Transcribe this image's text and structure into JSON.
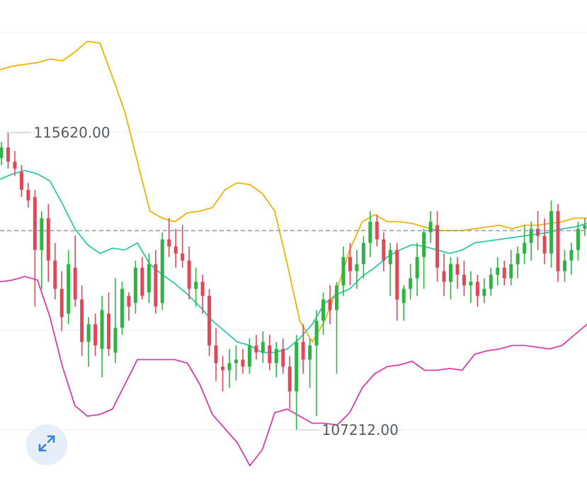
{
  "chart_data": {
    "type": "candlestick",
    "title": "",
    "xlabel": "",
    "ylabel": "",
    "grid": true,
    "annotations": {
      "high_label": "115620.00",
      "low_label": "107212.00"
    },
    "colors": {
      "up": "#2fb344",
      "down": "#e0485a",
      "upper_band": "#f0b400",
      "middle_band": "#2ec7a8",
      "lower_band": "#d93ca7",
      "current_price_line": "#8a8f99",
      "grid": "#eef0f3"
    },
    "candles": [
      [
        114900,
        115350,
        114700,
        115200
      ],
      [
        115200,
        115620,
        114600,
        114800
      ],
      [
        114800,
        115100,
        114400,
        114600
      ],
      [
        114500,
        114700,
        113800,
        114000
      ],
      [
        114000,
        114200,
        113500,
        113700
      ],
      [
        113800,
        114000,
        110700,
        112300
      ],
      [
        112300,
        113400,
        111200,
        113200
      ],
      [
        113200,
        113600,
        111400,
        112000
      ],
      [
        112000,
        112500,
        110900,
        111200
      ],
      [
        111200,
        111700,
        110000,
        110400
      ],
      [
        110500,
        112300,
        110200,
        111900
      ],
      [
        111800,
        112700,
        110700,
        110900
      ],
      [
        110900,
        111300,
        109300,
        109700
      ],
      [
        109700,
        110400,
        109000,
        110200
      ],
      [
        110200,
        110500,
        109300,
        109600
      ],
      [
        109500,
        111000,
        108700,
        110600
      ],
      [
        110500,
        111100,
        109300,
        109500
      ],
      [
        109400,
        111500,
        109100,
        110100
      ],
      [
        110100,
        111400,
        109900,
        111200
      ],
      [
        111000,
        111100,
        110300,
        110700
      ],
      [
        110800,
        112000,
        110500,
        111800
      ],
      [
        111800,
        112100,
        110900,
        111000
      ],
      [
        111100,
        112200,
        110800,
        111900
      ],
      [
        111900,
        112300,
        110500,
        110700
      ],
      [
        110800,
        112800,
        110600,
        112600
      ],
      [
        112600,
        113200,
        112100,
        112400
      ],
      [
        112400,
        112900,
        111800,
        112200
      ],
      [
        112200,
        113000,
        111800,
        112000
      ],
      [
        112000,
        112400,
        110900,
        111200
      ],
      [
        111200,
        111800,
        110700,
        111400
      ],
      [
        111400,
        111600,
        110500,
        111000
      ],
      [
        111000,
        111200,
        109300,
        109600
      ],
      [
        109600,
        110100,
        108600,
        109100
      ],
      [
        109000,
        109300,
        108300,
        108900
      ],
      [
        108900,
        109500,
        108400,
        109100
      ],
      [
        109100,
        109600,
        108600,
        109200
      ],
      [
        109200,
        109500,
        108800,
        109000
      ],
      [
        109000,
        109800,
        108800,
        109600
      ],
      [
        109600,
        109900,
        109200,
        109400
      ],
      [
        109400,
        110000,
        109100,
        109700
      ],
      [
        109600,
        109900,
        108900,
        109100
      ],
      [
        109100,
        109700,
        108700,
        109500
      ],
      [
        109500,
        109800,
        108800,
        109000
      ],
      [
        109000,
        109300,
        107800,
        108300
      ],
      [
        108300,
        109900,
        107212,
        109700
      ],
      [
        109700,
        110200,
        108800,
        109200
      ],
      [
        109200,
        109800,
        108400,
        109600
      ],
      [
        109600,
        110600,
        107600,
        110300
      ],
      [
        110300,
        111100,
        109900,
        110900
      ],
      [
        110900,
        111300,
        110200,
        110600
      ],
      [
        110600,
        111400,
        108800,
        111300
      ],
      [
        111300,
        112400,
        111000,
        112100
      ],
      [
        112100,
        112500,
        111300,
        111700
      ],
      [
        111700,
        112300,
        111200,
        111900
      ],
      [
        111900,
        112700,
        111500,
        112500
      ],
      [
        112500,
        113400,
        112100,
        113100
      ],
      [
        113100,
        113300,
        112400,
        112600
      ],
      [
        112600,
        112800,
        111700,
        112000
      ],
      [
        111900,
        112500,
        111000,
        112300
      ],
      [
        112300,
        112500,
        110300,
        110900
      ],
      [
        110800,
        111300,
        110300,
        111200
      ],
      [
        111200,
        111900,
        110900,
        111500
      ],
      [
        111500,
        112500,
        111000,
        112100
      ],
      [
        112100,
        112900,
        111200,
        112800
      ],
      [
        112800,
        113400,
        112500,
        113100
      ],
      [
        113000,
        113400,
        111400,
        111800
      ],
      [
        111700,
        112200,
        111000,
        111400
      ],
      [
        111400,
        112100,
        110900,
        111900
      ],
      [
        111900,
        112100,
        111200,
        111600
      ],
      [
        111600,
        112000,
        111000,
        111300
      ],
      [
        111300,
        111700,
        110800,
        111400
      ],
      [
        111400,
        111600,
        110700,
        111000
      ],
      [
        111000,
        111500,
        110800,
        111200
      ],
      [
        111200,
        111800,
        111000,
        111600
      ],
      [
        111600,
        112100,
        111300,
        111800
      ],
      [
        111800,
        112000,
        111300,
        111500
      ],
      [
        111500,
        112300,
        111300,
        111900
      ],
      [
        111900,
        112400,
        111500,
        112200
      ],
      [
        112200,
        113000,
        111900,
        112500
      ],
      [
        112500,
        113100,
        112000,
        112900
      ],
      [
        112900,
        113400,
        112300,
        112700
      ],
      [
        112700,
        113200,
        111900,
        112200
      ],
      [
        112200,
        113700,
        111800,
        113400
      ],
      [
        113400,
        113600,
        111400,
        111700
      ],
      [
        111700,
        112300,
        111400,
        112000
      ],
      [
        112000,
        112500,
        111600,
        112300
      ],
      [
        112300,
        113100,
        112000,
        112900
      ],
      [
        112900,
        113200,
        112700,
        113000
      ]
    ],
    "bollinger": {
      "upper": [
        117400,
        117500,
        117550,
        117600,
        117700,
        117650,
        117900,
        118200,
        118150,
        117200,
        116200,
        114800,
        113400,
        113200,
        113100,
        113350,
        113400,
        113500,
        114000,
        114200,
        114150,
        113900,
        113400,
        111900,
        110300,
        109700,
        110300,
        111200,
        112300,
        113100,
        113300,
        113100,
        113100,
        113050,
        112950,
        112850,
        112850,
        112850,
        112900,
        112950,
        113000,
        112900,
        113000,
        113000,
        113050,
        113100,
        113200,
        113200
      ],
      "middle": [
        114300,
        114450,
        114550,
        114450,
        114250,
        113600,
        112900,
        112450,
        112200,
        112350,
        112300,
        112500,
        111900,
        111600,
        111350,
        111050,
        110700,
        110300,
        110000,
        109700,
        109600,
        109400,
        109400,
        109500,
        109800,
        110200,
        110800,
        111050,
        111200,
        111550,
        111800,
        112100,
        112300,
        112450,
        112400,
        112300,
        112200,
        112300,
        112500,
        112550,
        112600,
        112650,
        112700,
        112750,
        112800,
        112900,
        112950,
        113050
      ],
      "lower": [
        111400,
        111450,
        111550,
        111450,
        110400,
        109000,
        107900,
        107600,
        107650,
        107800,
        108500,
        109200,
        109200,
        109200,
        109200,
        109100,
        108500,
        107650,
        107250,
        106850,
        106200,
        106650,
        107700,
        107800,
        107600,
        107400,
        107400,
        107350,
        107700,
        108400,
        108800,
        109000,
        109050,
        109150,
        108900,
        108900,
        108950,
        108900,
        109350,
        109450,
        109500,
        109600,
        109600,
        109550,
        109500,
        109600,
        109900,
        110200
      ]
    },
    "current_price": 112850
  },
  "ui": {
    "expand_icon": "expand-icon"
  }
}
